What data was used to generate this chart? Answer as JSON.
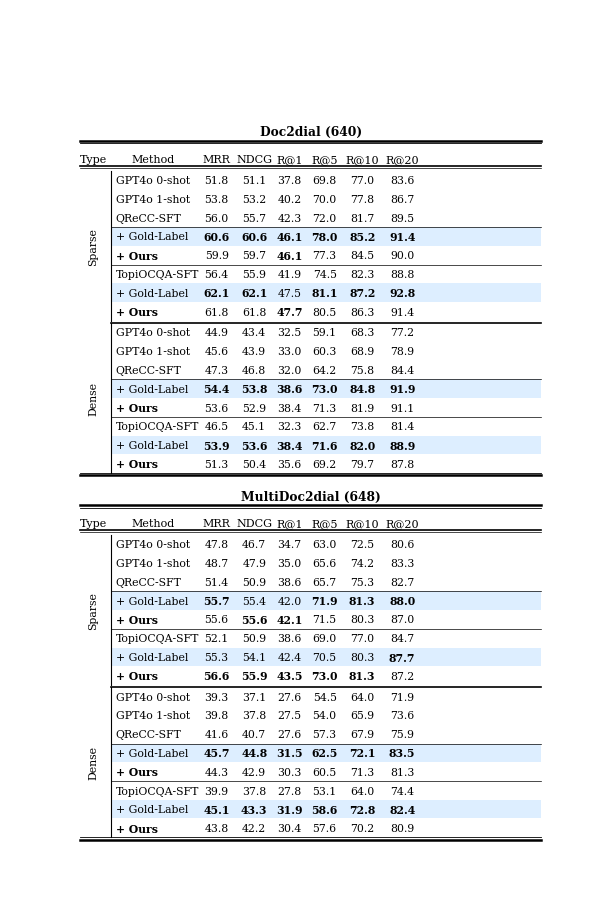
{
  "section1_title": "Doc2dial (640)",
  "section2_title": "MultiDoc2dial (648)",
  "columns": [
    "Type",
    "Method",
    "MRR",
    "NDCG",
    "R@1",
    "R@5",
    "R@10",
    "R@20"
  ],
  "highlight_color": "#ddeeff",
  "section1_rows": [
    {
      "type": "Sparse",
      "method": "GPT4o 0-shot",
      "vals": [
        "51.8",
        "51.1",
        "37.8",
        "69.8",
        "77.0",
        "83.6"
      ],
      "bold": [],
      "highlight": false,
      "group_sep": false
    },
    {
      "type": "",
      "method": "GPT4o 1-shot",
      "vals": [
        "53.8",
        "53.2",
        "40.2",
        "70.0",
        "77.8",
        "86.7"
      ],
      "bold": [],
      "highlight": false,
      "group_sep": false
    },
    {
      "type": "",
      "method": "QReCC-SFT",
      "vals": [
        "56.0",
        "55.7",
        "42.3",
        "72.0",
        "81.7",
        "89.5"
      ],
      "bold": [],
      "highlight": false,
      "group_sep": true
    },
    {
      "type": "",
      "method": "+ Gold-Label",
      "vals": [
        "60.6",
        "60.6",
        "46.1",
        "78.0",
        "85.2",
        "91.4"
      ],
      "bold": [
        0,
        1,
        2,
        3,
        4,
        5
      ],
      "highlight": true,
      "group_sep": false
    },
    {
      "type": "",
      "method": "+ Ours",
      "vals": [
        "59.9",
        "59.7",
        "46.1",
        "77.3",
        "84.5",
        "90.0"
      ],
      "bold": [
        2
      ],
      "highlight": false,
      "group_sep": true
    },
    {
      "type": "",
      "method": "TopiOCQA-SFT",
      "vals": [
        "56.4",
        "55.9",
        "41.9",
        "74.5",
        "82.3",
        "88.8"
      ],
      "bold": [],
      "highlight": false,
      "group_sep": false
    },
    {
      "type": "",
      "method": "+ Gold-Label",
      "vals": [
        "62.1",
        "62.1",
        "47.5",
        "81.1",
        "87.2",
        "92.8"
      ],
      "bold": [
        0,
        1,
        3,
        4,
        5
      ],
      "highlight": true,
      "group_sep": false
    },
    {
      "type": "",
      "method": "+ Ours",
      "vals": [
        "61.8",
        "61.8",
        "47.7",
        "80.5",
        "86.3",
        "91.4"
      ],
      "bold": [
        2
      ],
      "highlight": false,
      "group_sep": false
    },
    {
      "type": "Dense",
      "method": "GPT4o 0-shot",
      "vals": [
        "44.9",
        "43.4",
        "32.5",
        "59.1",
        "68.3",
        "77.2"
      ],
      "bold": [],
      "highlight": false,
      "group_sep": false
    },
    {
      "type": "",
      "method": "GPT4o 1-shot",
      "vals": [
        "45.6",
        "43.9",
        "33.0",
        "60.3",
        "68.9",
        "78.9"
      ],
      "bold": [],
      "highlight": false,
      "group_sep": false
    },
    {
      "type": "",
      "method": "QReCC-SFT",
      "vals": [
        "47.3",
        "46.8",
        "32.0",
        "64.2",
        "75.8",
        "84.4"
      ],
      "bold": [],
      "highlight": false,
      "group_sep": true
    },
    {
      "type": "",
      "method": "+ Gold-Label",
      "vals": [
        "54.4",
        "53.8",
        "38.6",
        "73.0",
        "84.8",
        "91.9"
      ],
      "bold": [
        0,
        1,
        2,
        3,
        4,
        5
      ],
      "highlight": true,
      "group_sep": false
    },
    {
      "type": "",
      "method": "+ Ours",
      "vals": [
        "53.6",
        "52.9",
        "38.4",
        "71.3",
        "81.9",
        "91.1"
      ],
      "bold": [],
      "highlight": false,
      "group_sep": true
    },
    {
      "type": "",
      "method": "TopiOCQA-SFT",
      "vals": [
        "46.5",
        "45.1",
        "32.3",
        "62.7",
        "73.8",
        "81.4"
      ],
      "bold": [],
      "highlight": false,
      "group_sep": false
    },
    {
      "type": "",
      "method": "+ Gold-Label",
      "vals": [
        "53.9",
        "53.6",
        "38.4",
        "71.6",
        "82.0",
        "88.9"
      ],
      "bold": [
        0,
        1,
        2,
        3,
        4,
        5
      ],
      "highlight": true,
      "group_sep": false
    },
    {
      "type": "",
      "method": "+ Ours",
      "vals": [
        "51.3",
        "50.4",
        "35.6",
        "69.2",
        "79.7",
        "87.8"
      ],
      "bold": [],
      "highlight": false,
      "group_sep": false
    }
  ],
  "section2_rows": [
    {
      "type": "Sparse",
      "method": "GPT4o 0-shot",
      "vals": [
        "47.8",
        "46.7",
        "34.7",
        "63.0",
        "72.5",
        "80.6"
      ],
      "bold": [],
      "highlight": false,
      "group_sep": false
    },
    {
      "type": "",
      "method": "GPT4o 1-shot",
      "vals": [
        "48.7",
        "47.9",
        "35.0",
        "65.6",
        "74.2",
        "83.3"
      ],
      "bold": [],
      "highlight": false,
      "group_sep": false
    },
    {
      "type": "",
      "method": "QReCC-SFT",
      "vals": [
        "51.4",
        "50.9",
        "38.6",
        "65.7",
        "75.3",
        "82.7"
      ],
      "bold": [],
      "highlight": false,
      "group_sep": true
    },
    {
      "type": "",
      "method": "+ Gold-Label",
      "vals": [
        "55.7",
        "55.4",
        "42.0",
        "71.9",
        "81.3",
        "88.0"
      ],
      "bold": [
        0,
        3,
        4,
        5
      ],
      "highlight": true,
      "group_sep": false
    },
    {
      "type": "",
      "method": "+ Ours",
      "vals": [
        "55.6",
        "55.6",
        "42.1",
        "71.5",
        "80.3",
        "87.0"
      ],
      "bold": [
        1,
        2
      ],
      "highlight": false,
      "group_sep": true
    },
    {
      "type": "",
      "method": "TopiOCQA-SFT",
      "vals": [
        "52.1",
        "50.9",
        "38.6",
        "69.0",
        "77.0",
        "84.7"
      ],
      "bold": [],
      "highlight": false,
      "group_sep": false
    },
    {
      "type": "",
      "method": "+ Gold-Label",
      "vals": [
        "55.3",
        "54.1",
        "42.4",
        "70.5",
        "80.3",
        "87.7"
      ],
      "bold": [
        5
      ],
      "highlight": true,
      "group_sep": false
    },
    {
      "type": "",
      "method": "+ Ours",
      "vals": [
        "56.6",
        "55.9",
        "43.5",
        "73.0",
        "81.3",
        "87.2"
      ],
      "bold": [
        0,
        1,
        2,
        3,
        4
      ],
      "highlight": false,
      "group_sep": false
    },
    {
      "type": "Dense",
      "method": "GPT4o 0-shot",
      "vals": [
        "39.3",
        "37.1",
        "27.6",
        "54.5",
        "64.0",
        "71.9"
      ],
      "bold": [],
      "highlight": false,
      "group_sep": false
    },
    {
      "type": "",
      "method": "GPT4o 1-shot",
      "vals": [
        "39.8",
        "37.8",
        "27.5",
        "54.0",
        "65.9",
        "73.6"
      ],
      "bold": [],
      "highlight": false,
      "group_sep": false
    },
    {
      "type": "",
      "method": "QReCC-SFT",
      "vals": [
        "41.6",
        "40.7",
        "27.6",
        "57.3",
        "67.9",
        "75.9"
      ],
      "bold": [],
      "highlight": false,
      "group_sep": true
    },
    {
      "type": "",
      "method": "+ Gold-Label",
      "vals": [
        "45.7",
        "44.8",
        "31.5",
        "62.5",
        "72.1",
        "83.5"
      ],
      "bold": [
        0,
        1,
        2,
        3,
        4,
        5
      ],
      "highlight": true,
      "group_sep": false
    },
    {
      "type": "",
      "method": "+ Ours",
      "vals": [
        "44.3",
        "42.9",
        "30.3",
        "60.5",
        "71.3",
        "81.3"
      ],
      "bold": [],
      "highlight": false,
      "group_sep": true
    },
    {
      "type": "",
      "method": "TopiOCQA-SFT",
      "vals": [
        "39.9",
        "37.8",
        "27.8",
        "53.1",
        "64.0",
        "74.4"
      ],
      "bold": [],
      "highlight": false,
      "group_sep": false
    },
    {
      "type": "",
      "method": "+ Gold-Label",
      "vals": [
        "45.1",
        "43.3",
        "31.9",
        "58.6",
        "72.8",
        "82.4"
      ],
      "bold": [
        0,
        1,
        2,
        3,
        4,
        5
      ],
      "highlight": true,
      "group_sep": false
    },
    {
      "type": "",
      "method": "+ Ours",
      "vals": [
        "43.8",
        "42.2",
        "30.4",
        "57.6",
        "70.2",
        "80.9"
      ],
      "bold": [],
      "highlight": false,
      "group_sep": false
    }
  ]
}
